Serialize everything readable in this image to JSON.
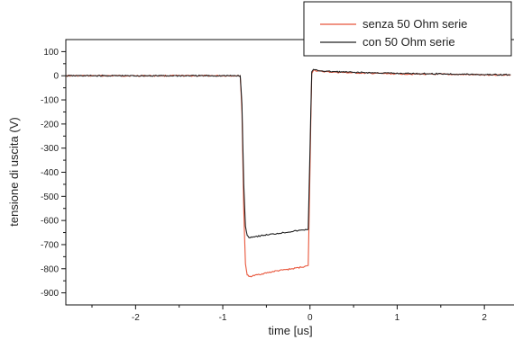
{
  "chart_data": {
    "type": "line",
    "xlabel": "time [us]",
    "ylabel": "tensione di uscita (V)",
    "xlim": [
      -2.8,
      2.35
    ],
    "ylim": [
      -950,
      150
    ],
    "x_ticks": [
      -2,
      -1,
      0,
      1,
      2
    ],
    "y_ticks": [
      100,
      0,
      -100,
      -200,
      -300,
      -400,
      -500,
      -600,
      -700,
      -800,
      -900
    ],
    "grid": false,
    "legend_position": "top-right",
    "series": [
      {
        "name": "senza 50 Ohm serie",
        "color": "#e8553a",
        "x": [
          -2.8,
          -0.8,
          -0.78,
          -0.76,
          -0.74,
          -0.72,
          -0.7,
          -0.6,
          -0.4,
          -0.2,
          -0.05,
          -0.02,
          0.0,
          0.02,
          0.04,
          0.08,
          0.2,
          0.5,
          1.0,
          1.5,
          2.0,
          2.3
        ],
        "values": [
          0,
          0,
          -150,
          -550,
          -780,
          -825,
          -833,
          -825,
          -810,
          -800,
          -790,
          -788,
          -380,
          10,
          25,
          20,
          16,
          12,
          8,
          6,
          4,
          3
        ]
      },
      {
        "name": "con 50 Ohm serie",
        "color": "#222222",
        "x": [
          -2.8,
          -0.8,
          -0.78,
          -0.76,
          -0.74,
          -0.72,
          -0.7,
          -0.6,
          -0.4,
          -0.2,
          -0.05,
          -0.02,
          0.0,
          0.02,
          0.04,
          0.08,
          0.2,
          0.5,
          1.0,
          1.5,
          2.0,
          2.3
        ],
        "values": [
          0,
          0,
          -120,
          -450,
          -625,
          -662,
          -670,
          -665,
          -655,
          -645,
          -638,
          -636,
          -300,
          15,
          25,
          22,
          18,
          14,
          10,
          8,
          5,
          4
        ]
      }
    ]
  }
}
